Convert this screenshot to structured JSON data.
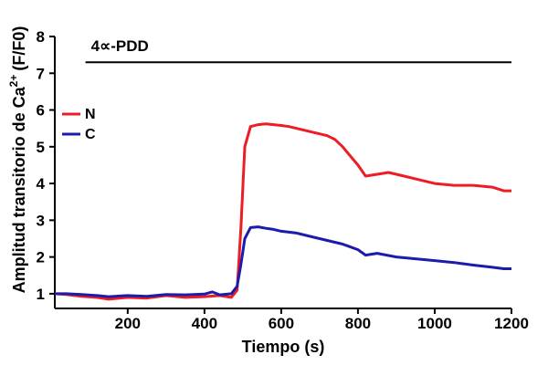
{
  "chart_data": {
    "type": "line",
    "xlabel": "Tiempo (s)",
    "ylabel": "Amplitud transitorio de Ca",
    "ylabel_sup": "2+",
    "ylabel_units": "(F/F0)",
    "xlim": [
      10,
      1200
    ],
    "ylim": [
      0.6,
      8
    ],
    "xticks": [
      "200",
      "400",
      "600",
      "800",
      "1000",
      "1200"
    ],
    "yticks": [
      "1",
      "2",
      "3",
      "4",
      "5",
      "6",
      "7",
      "8"
    ],
    "grid": false,
    "legend_position": "top-left",
    "annotation": {
      "label": "4∝-PDD",
      "x_start": 90,
      "x_end": 1200,
      "y": 7.3
    },
    "series": [
      {
        "name": "N",
        "color": "#ee1c24",
        "x": [
          10,
          40,
          80,
          120,
          150,
          200,
          250,
          300,
          350,
          400,
          440,
          470,
          485,
          495,
          505,
          520,
          540,
          560,
          580,
          600,
          620,
          640,
          660,
          680,
          700,
          720,
          740,
          760,
          780,
          800,
          820,
          850,
          880,
          920,
          960,
          1000,
          1050,
          1100,
          1150,
          1180,
          1200
        ],
        "y": [
          1.0,
          0.98,
          0.93,
          0.9,
          0.85,
          0.9,
          0.88,
          0.95,
          0.9,
          0.92,
          0.95,
          0.9,
          1.1,
          2.8,
          5.0,
          5.55,
          5.6,
          5.62,
          5.6,
          5.58,
          5.55,
          5.5,
          5.45,
          5.4,
          5.35,
          5.3,
          5.2,
          5.0,
          4.75,
          4.5,
          4.2,
          4.25,
          4.3,
          4.2,
          4.1,
          4.0,
          3.95,
          3.95,
          3.9,
          3.8,
          3.8
        ]
      },
      {
        "name": "C",
        "color": "#1c1caa",
        "x": [
          10,
          40,
          80,
          120,
          150,
          200,
          250,
          300,
          350,
          400,
          420,
          440,
          470,
          485,
          495,
          505,
          520,
          540,
          560,
          580,
          600,
          640,
          680,
          720,
          760,
          800,
          820,
          850,
          900,
          950,
          1000,
          1050,
          1100,
          1150,
          1180,
          1200
        ],
        "y": [
          1.0,
          1.0,
          0.98,
          0.95,
          0.92,
          0.95,
          0.93,
          0.98,
          0.97,
          0.99,
          1.05,
          0.97,
          1.0,
          1.2,
          1.8,
          2.5,
          2.8,
          2.82,
          2.78,
          2.75,
          2.7,
          2.65,
          2.55,
          2.45,
          2.35,
          2.2,
          2.05,
          2.1,
          2.0,
          1.95,
          1.9,
          1.85,
          1.78,
          1.72,
          1.68,
          1.68
        ]
      }
    ]
  }
}
